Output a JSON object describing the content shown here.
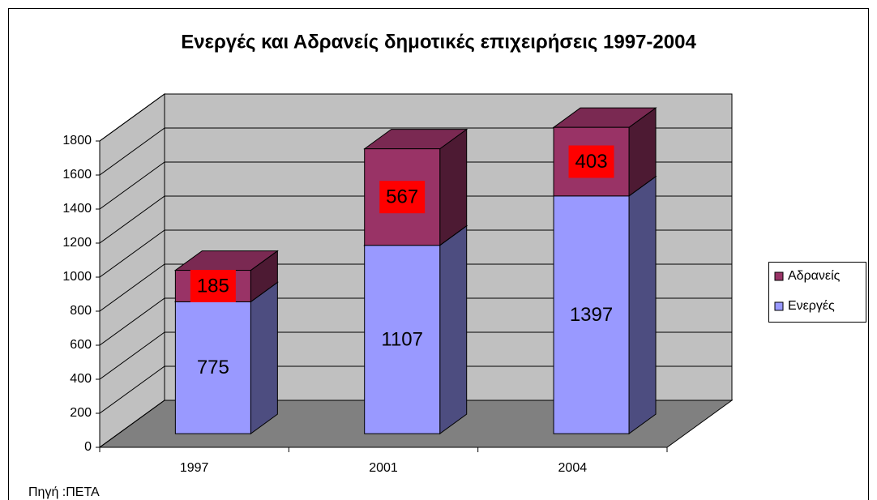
{
  "chart_data": {
    "type": "bar3d_stacked",
    "title": "Ενεργές και Αδρανείς δημοτικές επιχειρήσεις 1997-2004",
    "categories": [
      "1997",
      "2001",
      "2004"
    ],
    "series": [
      {
        "name": "Ενεργές",
        "color": "#9999ff",
        "values": [
          775,
          1107,
          1397
        ]
      },
      {
        "name": "Αδρανείς",
        "color": "#993366",
        "values": [
          185,
          567,
          403
        ]
      }
    ],
    "ylim": [
      0,
      1800
    ],
    "yticks": [
      0,
      200,
      400,
      600,
      800,
      1000,
      1200,
      1400,
      1600,
      1800
    ],
    "grid": true,
    "legend": "right",
    "note": "Πηγή :ΠΕΤΑ"
  }
}
